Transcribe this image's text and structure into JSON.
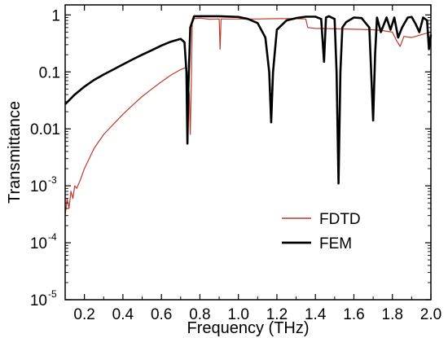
{
  "chart_data": {
    "type": "line",
    "title": "",
    "xlabel": "Frequency (THz)",
    "ylabel": "Transmittance",
    "xlim": [
      0.1,
      2.0
    ],
    "ylim": [
      1e-05,
      1.5
    ],
    "yscale": "log",
    "grid": false,
    "legend_position": "bottom-right",
    "x_ticks": [
      {
        "value": 0.2,
        "label": "0.2"
      },
      {
        "value": 0.4,
        "label": "0.4"
      },
      {
        "value": 0.6,
        "label": "0.6"
      },
      {
        "value": 0.8,
        "label": "0.8"
      },
      {
        "value": 1.0,
        "label": "1.0"
      },
      {
        "value": 1.2,
        "label": "1.2"
      },
      {
        "value": 1.4,
        "label": "1.4"
      },
      {
        "value": 1.6,
        "label": "1.6"
      },
      {
        "value": 1.8,
        "label": "1.8"
      },
      {
        "value": 2.0,
        "label": "2.0"
      }
    ],
    "y_ticks": [
      {
        "value": 1,
        "label": "1",
        "exp": ""
      },
      {
        "value": 0.1,
        "label": "0.1",
        "exp": ""
      },
      {
        "value": 0.01,
        "label": "0.01",
        "exp": ""
      },
      {
        "value": 0.001,
        "label": "10",
        "exp": "-3"
      },
      {
        "value": 0.0001,
        "label": "10",
        "exp": "-4"
      },
      {
        "value": 1e-05,
        "label": "10",
        "exp": "-5"
      }
    ],
    "series": [
      {
        "name": "FDTD",
        "color": "#c0392b",
        "x": [
          0.1,
          0.11,
          0.12,
          0.13,
          0.14,
          0.15,
          0.16,
          0.18,
          0.2,
          0.25,
          0.3,
          0.35,
          0.4,
          0.45,
          0.5,
          0.55,
          0.6,
          0.65,
          0.7,
          0.73,
          0.745,
          0.75,
          0.755,
          0.76,
          0.77,
          0.8,
          0.85,
          0.9,
          0.905,
          0.91,
          0.95,
          1.0,
          1.1,
          1.2,
          1.3,
          1.35,
          1.36,
          1.4,
          1.5,
          1.6,
          1.7,
          1.75,
          1.8,
          1.82,
          1.84,
          1.86,
          1.9,
          1.95,
          2.0
        ],
        "values": [
          0.0003,
          0.0006,
          0.0004,
          0.0008,
          0.0006,
          0.001,
          0.0009,
          0.0013,
          0.002,
          0.0045,
          0.008,
          0.012,
          0.018,
          0.026,
          0.037,
          0.05,
          0.067,
          0.088,
          0.11,
          0.12,
          0.04,
          0.008,
          0.06,
          0.7,
          0.86,
          0.88,
          0.84,
          0.85,
          0.25,
          0.85,
          0.85,
          0.85,
          0.85,
          0.86,
          0.86,
          0.85,
          0.6,
          0.58,
          0.57,
          0.56,
          0.55,
          0.53,
          0.5,
          0.36,
          0.28,
          0.42,
          0.4,
          0.45,
          0.5
        ]
      },
      {
        "name": "FEM",
        "color": "#000000",
        "x": [
          0.1,
          0.15,
          0.2,
          0.25,
          0.3,
          0.35,
          0.4,
          0.45,
          0.5,
          0.55,
          0.6,
          0.65,
          0.7,
          0.72,
          0.73,
          0.735,
          0.74,
          0.75,
          0.77,
          0.8,
          0.85,
          0.9,
          1.0,
          1.05,
          1.1,
          1.14,
          1.16,
          1.17,
          1.18,
          1.2,
          1.25,
          1.3,
          1.35,
          1.4,
          1.43,
          1.445,
          1.455,
          1.47,
          1.5,
          1.51,
          1.52,
          1.53,
          1.54,
          1.56,
          1.6,
          1.64,
          1.68,
          1.69,
          1.7,
          1.71,
          1.72,
          1.74,
          1.77,
          1.79,
          1.81,
          1.83,
          1.85,
          1.88,
          1.9,
          1.92,
          1.94,
          1.96,
          1.98,
          1.99,
          2.0
        ],
        "values": [
          0.027,
          0.04,
          0.055,
          0.072,
          0.09,
          0.11,
          0.135,
          0.165,
          0.2,
          0.24,
          0.29,
          0.34,
          0.38,
          0.33,
          0.1,
          0.0055,
          0.05,
          0.6,
          0.95,
          0.95,
          0.95,
          0.95,
          0.92,
          0.85,
          0.72,
          0.4,
          0.1,
          0.013,
          0.1,
          0.55,
          0.8,
          0.88,
          0.93,
          0.93,
          0.85,
          0.15,
          0.9,
          0.95,
          0.85,
          0.1,
          0.0011,
          0.1,
          0.6,
          0.75,
          0.9,
          0.88,
          0.6,
          0.1,
          0.014,
          0.2,
          0.9,
          0.5,
          0.9,
          0.55,
          0.9,
          0.4,
          0.6,
          0.9,
          0.92,
          0.7,
          0.5,
          0.9,
          0.8,
          0.25,
          0.45
        ]
      }
    ]
  }
}
